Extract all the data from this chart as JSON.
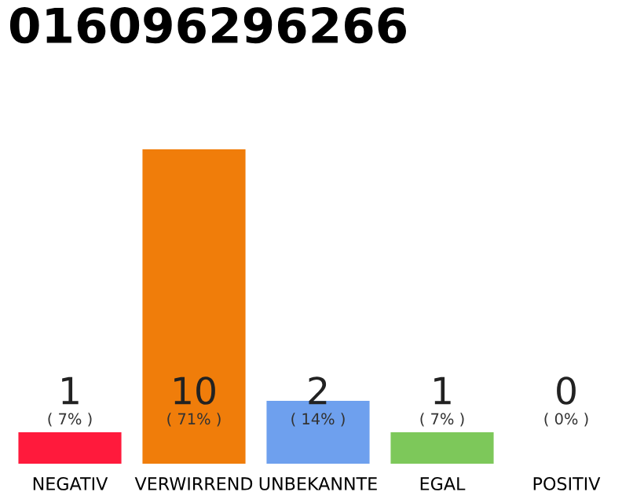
{
  "chart_data": {
    "type": "bar",
    "title": "016096296266",
    "categories": [
      "NEGATIV",
      "VERWIRREND",
      "UNBEKANNTE",
      "EGAL",
      "POSITIV"
    ],
    "values": [
      1,
      10,
      2,
      1,
      0
    ],
    "colors": [
      "#ff1a3c",
      "#f07d0a",
      "#6ea0ee",
      "#7dc85a",
      "#cccccc"
    ],
    "ylim": [
      0,
      10
    ],
    "value_labels": [
      "1",
      "10",
      "2",
      "1",
      "0"
    ],
    "annotations": [
      "( 7% )",
      "( 71% )",
      "( 14% )",
      "( 7% )",
      "( 0% )"
    ],
    "grid": false,
    "legend": false
  }
}
